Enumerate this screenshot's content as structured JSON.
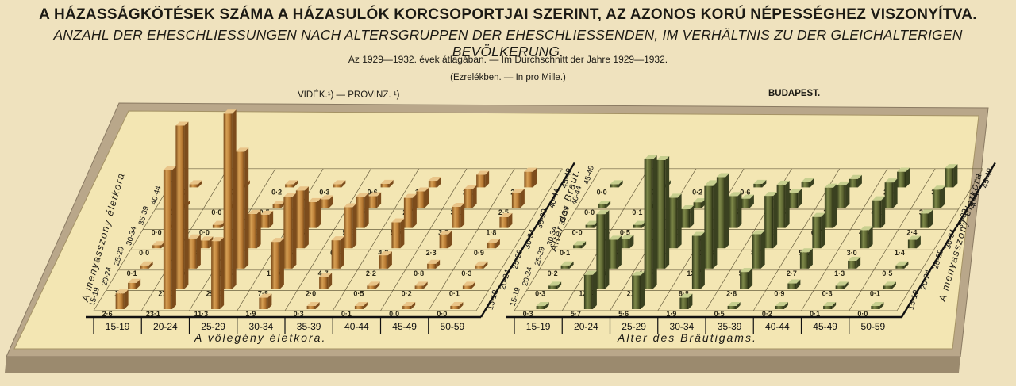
{
  "header": {
    "title": "A HÁZASSÁGKÖTÉSEK SZÁMA A HÁZASULÓK KORCSOPORTJAI SZERINT, AZ AZONOS KORÚ NÉPESSÉGHEZ VISZONYÍTVA.",
    "subtitle": "ANZAHL DER EHESCHLIESSUNGEN NACH ALTERSGRUPPEN DER EHESCHLIESSENDEN, IM VERHÄLTNIS ZU DER GLEICHALTERIGEN BEVÖLKERUNG.",
    "period": "Az 1929—1932. évek átlagában. — Im Durchschnitt der Jahre 1929—1932.",
    "unit": "(Ezrelékben. — In pro Mille.)"
  },
  "regions": {
    "left": "VIDÉK.¹) — PROVINZ. ¹)",
    "right": "BUDAPEST."
  },
  "axes": {
    "x_title_hu": "A vőlegény életkora.",
    "x_title_de": "Alter des Bräutigams.",
    "y_title_hu": "A menyasszony életkora",
    "y_title_de": "Alter der Braut."
  },
  "chart_data": [
    {
      "type": "bar3d",
      "name": "VIDÉK.¹) — PROVINZ. ¹)",
      "groom_age_groups": [
        "15-19",
        "20-24",
        "25-29",
        "30-34",
        "35-39",
        "40-44",
        "45-49",
        "50-59"
      ],
      "bride_age_groups": [
        "15-19",
        "20-24",
        "25-29",
        "30-34",
        "35-39",
        "40-44",
        "45-49"
      ],
      "values": [
        [
          2.6,
          23.1,
          11.3,
          1.9,
          0.3,
          0.1,
          0.0,
          0.0
        ],
        [
          1.0,
          27.1,
          29.1,
          7.8,
          2.0,
          0.5,
          0.2,
          0.1
        ],
        [
          0.1,
          5.0,
          19.4,
          11.9,
          4.7,
          2.2,
          0.8,
          0.3
        ],
        [
          0.0,
          1.3,
          5.7,
          9.6,
          6.8,
          4.3,
          2.3,
          0.9
        ],
        [
          0.0,
          0.0,
          2.2,
          4.3,
          5.2,
          5.0,
          3.5,
          1.8
        ],
        [
          0.0,
          0.0,
          0.5,
          1.4,
          1.9,
          2.7,
          3.1,
          2.5
        ],
        [
          0.0,
          0.0,
          0.2,
          0.3,
          0.6,
          1.1,
          2.1,
          2.6
        ]
      ]
    },
    {
      "type": "bar3d",
      "name": "BUDAPEST.",
      "groom_age_groups": [
        "15-19",
        "20-24",
        "25-29",
        "30-34",
        "35-39",
        "40-44",
        "45-49",
        "50-59"
      ],
      "bride_age_groups": [
        "15-19",
        "20-24",
        "25-29",
        "30-34",
        "35-39",
        "40-44",
        "45-49"
      ],
      "values": [
        [
          0.3,
          5.7,
          5.6,
          1.9,
          0.5,
          0.2,
          0.1,
          0.0
        ],
        [
          0.3,
          12.4,
          21.5,
          8.8,
          2.8,
          0.9,
          0.3,
          0.1
        ],
        [
          0.2,
          4.8,
          18.0,
          13.7,
          5.7,
          2.7,
          1.3,
          0.5
        ],
        [
          0.1,
          1.6,
          8.4,
          11.8,
          8.7,
          5.2,
          3.0,
          1.4
        ],
        [
          0.0,
          0.5,
          3.1,
          5.3,
          7.2,
          6.7,
          4.6,
          2.4
        ],
        [
          0.0,
          0.1,
          0.9,
          1.5,
          2.5,
          3.7,
          4.2,
          3.0
        ],
        [
          0.0,
          0.0,
          0.2,
          0.6,
          0.9,
          1.4,
          2.6,
          3.2
        ]
      ]
    }
  ]
}
